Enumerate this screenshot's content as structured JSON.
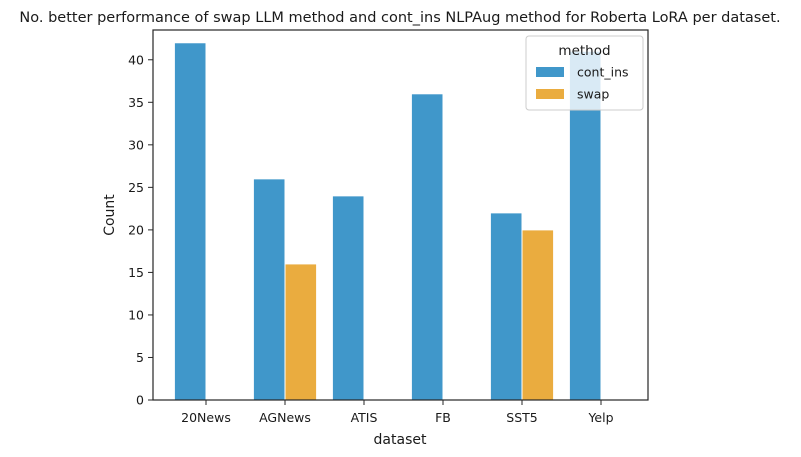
{
  "chart_data": {
    "type": "bar",
    "title": "No. better performance of swap LLM method and cont_ins NLPAug method for Roberta LoRA per dataset.",
    "xlabel": "dataset",
    "ylabel": "Count",
    "categories": [
      "20News",
      "AGNews",
      "ATIS",
      "FB",
      "SST5",
      "Yelp"
    ],
    "series": [
      {
        "name": "cont_ins",
        "color": "#2b8cc4",
        "values": [
          42,
          26,
          24,
          36,
          22,
          41
        ]
      },
      {
        "name": "swap",
        "color": "#e8a32a",
        "values": [
          0,
          16,
          0,
          0,
          20,
          0
        ]
      }
    ],
    "ylim": [
      0,
      43.5
    ],
    "yticks": [
      0,
      5,
      10,
      15,
      20,
      25,
      30,
      35,
      40
    ],
    "grid": false,
    "legend": {
      "title": "method",
      "placement": "top-right"
    }
  }
}
